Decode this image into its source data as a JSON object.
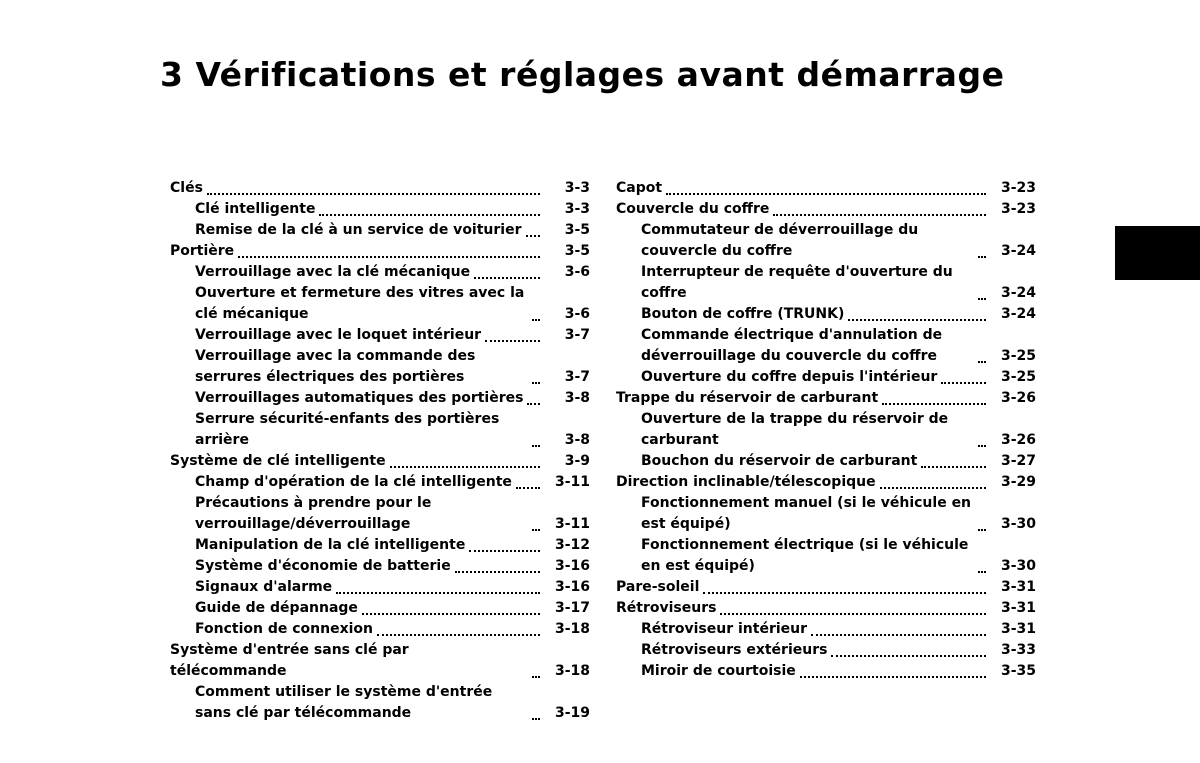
{
  "title": "3 Vérifications et réglages avant démarrage",
  "columns": [
    {
      "entries": [
        {
          "label": "Clés",
          "page": "3-3",
          "indent": 0
        },
        {
          "label": "Clé intelligente",
          "page": "3-3",
          "indent": 1
        },
        {
          "label": "Remise de la clé à un service de voiturier",
          "page": "3-5",
          "indent": 1
        },
        {
          "label": "Portière",
          "page": "3-5",
          "indent": 0
        },
        {
          "label": "Verrouillage avec la clé mécanique",
          "page": "3-6",
          "indent": 1
        },
        {
          "label": "Ouverture et fermeture des vitres avec la clé mécanique",
          "page": "3-6",
          "indent": 1
        },
        {
          "label": "Verrouillage avec le loquet intérieur",
          "page": "3-7",
          "indent": 1
        },
        {
          "label": "Verrouillage avec la commande des serrures électriques des portières",
          "page": "3-7",
          "indent": 1
        },
        {
          "label": "Verrouillages automatiques des portières",
          "page": "3-8",
          "indent": 1
        },
        {
          "label": "Serrure sécurité-enfants des portières arrière",
          "page": "3-8",
          "indent": 1
        },
        {
          "label": "Système de clé intelligente",
          "page": "3-9",
          "indent": 0
        },
        {
          "label": "Champ d'opération de la clé intelligente",
          "page": "3-11",
          "indent": 1
        },
        {
          "label": "Précautions à prendre pour le verrouillage/déverrouillage",
          "page": "3-11",
          "indent": 1
        },
        {
          "label": "Manipulation de la clé intelligente",
          "page": "3-12",
          "indent": 1
        },
        {
          "label": "Système d'économie de batterie",
          "page": "3-16",
          "indent": 1
        },
        {
          "label": "Signaux d'alarme",
          "page": "3-16",
          "indent": 1
        },
        {
          "label": "Guide de dépannage",
          "page": "3-17",
          "indent": 1
        },
        {
          "label": "Fonction de connexion",
          "page": "3-18",
          "indent": 1
        },
        {
          "label": "Système d'entrée sans clé par télécommande",
          "page": "3-18",
          "indent": 0
        },
        {
          "label": "Comment utiliser le système d'entrée sans clé par télécommande",
          "page": "3-19",
          "indent": 1
        }
      ]
    },
    {
      "entries": [
        {
          "label": "Capot",
          "page": "3-23",
          "indent": 0
        },
        {
          "label": "Couvercle du coffre",
          "page": "3-23",
          "indent": 0
        },
        {
          "label": "Commutateur de déverrouillage du couvercle du coffre",
          "page": "3-24",
          "indent": 1
        },
        {
          "label": "Interrupteur de requête d'ouverture du coffre",
          "page": "3-24",
          "indent": 1
        },
        {
          "label": "Bouton de coffre (TRUNK)",
          "page": "3-24",
          "indent": 1
        },
        {
          "label": "Commande électrique d'annulation de déverrouillage du couvercle du coffre",
          "page": "3-25",
          "indent": 1
        },
        {
          "label": "Ouverture du coffre depuis l'intérieur",
          "page": "3-25",
          "indent": 1
        },
        {
          "label": "Trappe du réservoir de carburant",
          "page": "3-26",
          "indent": 0
        },
        {
          "label": "Ouverture de la trappe du réservoir de carburant",
          "page": "3-26",
          "indent": 1
        },
        {
          "label": "Bouchon du réservoir de carburant",
          "page": "3-27",
          "indent": 1
        },
        {
          "label": "Direction inclinable/télescopique",
          "page": "3-29",
          "indent": 0
        },
        {
          "label": "Fonctionnement manuel (si le véhicule en est équipé)",
          "page": "3-30",
          "indent": 1
        },
        {
          "label": "Fonctionnement électrique (si le véhicule en est équipé)",
          "page": "3-30",
          "indent": 1
        },
        {
          "label": "Pare-soleil",
          "page": "3-31",
          "indent": 0
        },
        {
          "label": "Rétroviseurs",
          "page": "3-31",
          "indent": 0
        },
        {
          "label": "Rétroviseur intérieur",
          "page": "3-31",
          "indent": 1
        },
        {
          "label": "Rétroviseurs extérieurs",
          "page": "3-33",
          "indent": 1
        },
        {
          "label": "Miroir de courtoisie",
          "page": "3-35",
          "indent": 1
        }
      ]
    }
  ]
}
